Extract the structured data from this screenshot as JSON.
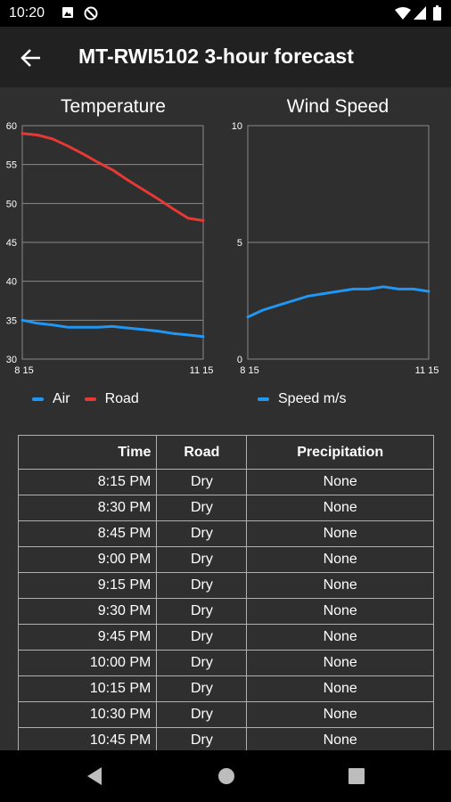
{
  "status_bar": {
    "time": "10:20"
  },
  "app_bar": {
    "title": "MT-RWI5102 3-hour forecast"
  },
  "charts": {
    "temperature": {
      "title": "Temperature",
      "y_ticks": [
        "60",
        "55",
        "50",
        "45",
        "40",
        "35",
        "30"
      ],
      "x_ticks": [
        "8 15",
        "11 15"
      ],
      "legend": [
        {
          "label": "Air",
          "color": "#2196f3"
        },
        {
          "label": "Road",
          "color": "#e53935"
        }
      ]
    },
    "wind": {
      "title": "Wind Speed",
      "y_ticks": [
        "10",
        "5",
        "0"
      ],
      "x_ticks": [
        "8 15",
        "11 15"
      ],
      "legend": [
        {
          "label": "Speed m/s",
          "color": "#2196f3"
        }
      ]
    }
  },
  "chart_data": [
    {
      "type": "line",
      "title": "Temperature",
      "ylim": [
        30,
        60
      ],
      "x": [
        "8:15 PM",
        "8:30 PM",
        "8:45 PM",
        "9:00 PM",
        "9:15 PM",
        "9:30 PM",
        "9:45 PM",
        "10:00 PM",
        "10:15 PM",
        "10:30 PM",
        "10:45 PM",
        "11:00 PM",
        "11:15 PM"
      ],
      "series": [
        {
          "name": "Air",
          "color": "#2196f3",
          "values": [
            35.0,
            34.6,
            34.4,
            34.1,
            34.1,
            34.1,
            34.2,
            34.0,
            33.8,
            33.6,
            33.3,
            33.1,
            32.9
          ]
        },
        {
          "name": "Road",
          "color": "#e53935",
          "values": [
            59.0,
            58.8,
            58.3,
            57.4,
            56.4,
            55.3,
            54.3,
            53.0,
            51.8,
            50.6,
            49.3,
            48.1,
            47.8
          ]
        }
      ],
      "grid": true,
      "legend_position": "bottom"
    },
    {
      "type": "line",
      "title": "Wind Speed",
      "ylim": [
        0,
        10
      ],
      "x": [
        "8:15 PM",
        "8:30 PM",
        "8:45 PM",
        "9:00 PM",
        "9:15 PM",
        "9:30 PM",
        "9:45 PM",
        "10:00 PM",
        "10:15 PM",
        "10:30 PM",
        "10:45 PM",
        "11:00 PM",
        "11:15 PM"
      ],
      "series": [
        {
          "name": "Speed m/s",
          "color": "#2196f3",
          "values": [
            1.8,
            2.1,
            2.3,
            2.5,
            2.7,
            2.8,
            2.9,
            3.0,
            3.0,
            3.1,
            3.0,
            3.0,
            2.9
          ]
        }
      ],
      "grid": true,
      "legend_position": "bottom"
    }
  ],
  "table": {
    "headers": {
      "time": "Time",
      "road": "Road",
      "precipitation": "Precipitation"
    },
    "rows": [
      {
        "time": "8:15 PM",
        "road": "Dry",
        "precipitation": "None"
      },
      {
        "time": "8:30 PM",
        "road": "Dry",
        "precipitation": "None"
      },
      {
        "time": "8:45 PM",
        "road": "Dry",
        "precipitation": "None"
      },
      {
        "time": "9:00 PM",
        "road": "Dry",
        "precipitation": "None"
      },
      {
        "time": "9:15 PM",
        "road": "Dry",
        "precipitation": "None"
      },
      {
        "time": "9:30 PM",
        "road": "Dry",
        "precipitation": "None"
      },
      {
        "time": "9:45 PM",
        "road": "Dry",
        "precipitation": "None"
      },
      {
        "time": "10:00 PM",
        "road": "Dry",
        "precipitation": "None"
      },
      {
        "time": "10:15 PM",
        "road": "Dry",
        "precipitation": "None"
      },
      {
        "time": "10:30 PM",
        "road": "Dry",
        "precipitation": "None"
      },
      {
        "time": "10:45 PM",
        "road": "Dry",
        "precipitation": "None"
      }
    ]
  },
  "icons": {
    "status": [
      "photo-icon",
      "no-disturb-icon",
      "wifi-icon",
      "signal-icon",
      "battery-icon"
    ],
    "app_bar": [
      "back-arrow-icon"
    ],
    "nav": [
      "back-triangle-icon",
      "home-circle-icon",
      "recents-square-icon"
    ]
  }
}
